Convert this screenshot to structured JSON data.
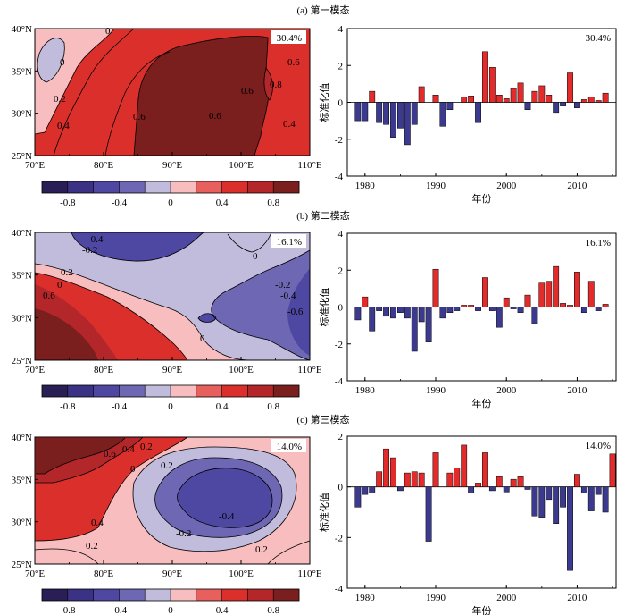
{
  "colors": {
    "palette": [
      "#2a1f54",
      "#3b3285",
      "#4f48a3",
      "#6e68b4",
      "#c1bcdc",
      "#f7bdbf",
      "#e8605e",
      "#db2f2c",
      "#b3262a",
      "#7b1e1e"
    ],
    "bar_positive": "#e32b2b",
    "bar_negative": "#3c3a8f"
  },
  "colorbar": {
    "ticks": [
      "-0.8",
      "-0.4",
      "0",
      "0.4",
      "0.8"
    ]
  },
  "map_axes": {
    "x_ticks": [
      "70°E",
      "80°E",
      "90°E",
      "100°E",
      "110°E"
    ],
    "y_ticks": [
      "40°N",
      "35°N",
      "30°N",
      "25°N"
    ]
  },
  "chart_data": [
    {
      "type": "bar",
      "panel_title": "(a) 第一模态",
      "variance": "30.4%",
      "xlabel": "年份",
      "ylabel": "标准化值",
      "ylim": [
        -4,
        4
      ],
      "yticks": [
        "4",
        "2",
        "0",
        "-2",
        "-4"
      ],
      "xticks": [
        "1980",
        "1990",
        "2000",
        "2010"
      ],
      "x": [
        1979,
        1980,
        1981,
        1982,
        1983,
        1984,
        1985,
        1986,
        1987,
        1988,
        1989,
        1990,
        1991,
        1992,
        1993,
        1994,
        1995,
        1996,
        1997,
        1998,
        1999,
        2000,
        2001,
        2002,
        2003,
        2004,
        2005,
        2006,
        2007,
        2008,
        2009,
        2010,
        2011,
        2012,
        2013,
        2014,
        2015,
        2016
      ],
      "values": [
        -1.0,
        -1.0,
        0.6,
        -1.1,
        -1.2,
        -1.9,
        -1.4,
        -2.3,
        -1.2,
        0.85,
        0.0,
        0.4,
        -1.3,
        -0.4,
        0.0,
        0.3,
        0.35,
        -1.1,
        2.75,
        1.9,
        0.4,
        0.2,
        0.75,
        1.05,
        -0.4,
        0.6,
        0.9,
        0.4,
        -0.55,
        -0.2,
        1.6,
        -0.3,
        0.15,
        0.3,
        0.1,
        0.5,
        0.0,
        0.0
      ]
    },
    {
      "type": "bar",
      "panel_title": "(b) 第二模态",
      "variance": "16.1%",
      "xlabel": "年份",
      "ylabel": "标准化值",
      "ylim": [
        -4,
        4
      ],
      "yticks": [
        "4",
        "2",
        "0",
        "-2",
        "-4"
      ],
      "xticks": [
        "1980",
        "1990",
        "2000",
        "2010"
      ],
      "x": [
        1979,
        1980,
        1981,
        1982,
        1983,
        1984,
        1985,
        1986,
        1987,
        1988,
        1989,
        1990,
        1991,
        1992,
        1993,
        1994,
        1995,
        1996,
        1997,
        1998,
        1999,
        2000,
        2001,
        2002,
        2003,
        2004,
        2005,
        2006,
        2007,
        2008,
        2009,
        2010,
        2011,
        2012,
        2013,
        2014,
        2015,
        2016
      ],
      "values": [
        -0.7,
        0.55,
        -1.3,
        -0.2,
        -0.5,
        -0.6,
        -0.3,
        -0.6,
        -2.4,
        -0.8,
        -1.9,
        2.05,
        -0.6,
        -0.3,
        -0.2,
        0.1,
        0.1,
        -0.2,
        1.6,
        -0.2,
        -1.1,
        0.5,
        -0.1,
        -0.3,
        0.65,
        -0.9,
        1.3,
        1.4,
        2.2,
        0.2,
        0.1,
        1.9,
        -0.3,
        1.4,
        -0.2,
        0.15,
        0.0,
        0.0
      ]
    },
    {
      "type": "bar",
      "panel_title": "(c) 第三模态",
      "variance": "14.0%",
      "xlabel": "年份",
      "ylabel": "标准化值",
      "ylim": [
        -4,
        2
      ],
      "yticks": [
        "2",
        "0",
        "-2",
        "-4"
      ],
      "xticks": [
        "1980",
        "1990",
        "2000",
        "2010"
      ],
      "x": [
        1979,
        1980,
        1981,
        1982,
        1983,
        1984,
        1985,
        1986,
        1987,
        1988,
        1989,
        1990,
        1991,
        1992,
        1993,
        1994,
        1995,
        1996,
        1997,
        1998,
        1999,
        2000,
        2001,
        2002,
        2003,
        2004,
        2005,
        2006,
        2007,
        2008,
        2009,
        2010,
        2011,
        2012,
        2013,
        2014,
        2015,
        2016
      ],
      "values": [
        -0.8,
        -0.3,
        -0.25,
        0.6,
        1.5,
        1.15,
        -0.15,
        0.55,
        0.6,
        0.55,
        -2.15,
        1.35,
        0.0,
        0.55,
        0.75,
        1.65,
        -0.25,
        0.15,
        1.35,
        -0.15,
        0.4,
        -0.2,
        0.3,
        0.4,
        -0.1,
        -1.15,
        -1.2,
        -0.5,
        -1.45,
        -0.8,
        -3.3,
        0.5,
        -0.25,
        -0.95,
        -0.3,
        -1.0,
        1.3,
        0.0
      ]
    }
  ],
  "maps": [
    {
      "percent": "30.4%",
      "contour_labels": [
        "0",
        "0",
        "0.2",
        "0.4",
        "0.6",
        "0.6",
        "0.6",
        "0.8",
        "0.6",
        "0.4"
      ]
    },
    {
      "percent": "16.1%",
      "contour_labels": [
        "-0.4",
        "-0.2",
        "0.2",
        "0",
        "0.6",
        "0",
        "-0.2",
        "-0.4",
        "-0.6",
        "0"
      ]
    },
    {
      "percent": "14.0%",
      "contour_labels": [
        "0.6",
        "0.4",
        "0.2",
        "0",
        "0.2",
        "-0.4",
        "-0.2",
        "0.4",
        "0.2",
        "0.2"
      ]
    }
  ]
}
